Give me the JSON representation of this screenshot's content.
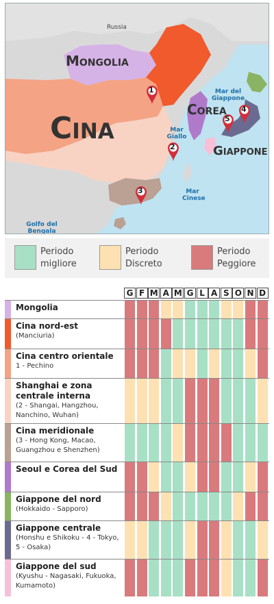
{
  "map": {
    "country_labels": {
      "russia": "Russia",
      "mongolia": "Mongolia",
      "cina": "Cina",
      "corea": "Corea",
      "giappone": "Giappone"
    },
    "sea_labels": {
      "mar_giappone": "Mar del Giappone",
      "mar_giallo": "Mar Giallo",
      "mar_cinese": "Mar Cinese",
      "golfo_bengala": "Golfo del Bengala"
    },
    "pins": [
      "1",
      "2",
      "3",
      "4",
      "5"
    ],
    "colors": {
      "sea": "#bfe3f1",
      "land_other": "#d9d9d9",
      "russia": "#e2e2e2",
      "mongolia": "#d6b3e6",
      "china_northeast": "#f05a2c",
      "china_central_east": "#f4a384",
      "china_interior": "#f8d3c4",
      "china_south": "#bba094",
      "korea": "#b07acb",
      "japan_north": "#8ab463",
      "japan_central": "#6b6b91",
      "japan_south": "#f7c0d8",
      "pin": "#d12f3c"
    }
  },
  "legend": {
    "items": [
      {
        "label_line1": "Periodo",
        "label_line2": "migliore",
        "color": "#a8e0c5"
      },
      {
        "label_line1": "Periodo",
        "label_line2": "Discreto",
        "color": "#fde1b2"
      },
      {
        "label_line1": "Periodo",
        "label_line2": "Peggiore",
        "color": "#d97a7d"
      }
    ]
  },
  "table": {
    "months": [
      "G",
      "F",
      "M",
      "A",
      "M",
      "G",
      "L",
      "A",
      "S",
      "O",
      "N",
      "D"
    ],
    "rows": [
      {
        "title": "Mongolia",
        "sub": "",
        "color": "#d6b3e6",
        "ratings": [
          "P",
          "P",
          "P",
          "D",
          "D",
          "B",
          "B",
          "B",
          "D",
          "D",
          "P",
          "P"
        ]
      },
      {
        "title": "Cina nord-est",
        "sub": "(Manciuria)",
        "color": "#f05a2c",
        "ratings": [
          "P",
          "P",
          "P",
          "P",
          "B",
          "B",
          "B",
          "B",
          "B",
          "B",
          "P",
          "P"
        ]
      },
      {
        "title": "Cina centro orientale",
        "sub": "1 - Pechino",
        "color": "#f4a384",
        "ratings": [
          "P",
          "P",
          "P",
          "B",
          "D",
          "D",
          "B",
          "D",
          "B",
          "B",
          "D",
          "P"
        ]
      },
      {
        "title": "Shanghai e zona centrale interna",
        "sub": "(2 - Shangai, Hangzhou, Nanchino, Wuhan)",
        "color": "#f8d3c4",
        "ratings": [
          "D",
          "D",
          "D",
          "B",
          "B",
          "P",
          "P",
          "P",
          "B",
          "B",
          "B",
          "D"
        ]
      },
      {
        "title": "Cina meridionale",
        "sub": "(3 - Hong Kong, Macao, Guangzhou e Shenzhen)",
        "color": "#bba094",
        "ratings": [
          "B",
          "B",
          "B",
          "B",
          "D",
          "P",
          "P",
          "P",
          "P",
          "B",
          "B",
          "B"
        ]
      },
      {
        "title": "Seoul e Corea del Sud",
        "sub": "",
        "color": "#b07acb",
        "ratings": [
          "P",
          "P",
          "D",
          "B",
          "B",
          "D",
          "P",
          "P",
          "B",
          "B",
          "D",
          "P"
        ]
      },
      {
        "title": "Giappone del nord",
        "sub": "(Hokkaido - Sapporo)",
        "color": "#8ab463",
        "ratings": [
          "P",
          "P",
          "P",
          "D",
          "B",
          "B",
          "B",
          "B",
          "B",
          "D",
          "P",
          "P"
        ]
      },
      {
        "title": "Giappone centrale",
        "sub": "(Honshu e Shikoku - 4 - Tokyo, 5 - Osaka)",
        "color": "#6b6b91",
        "ratings": [
          "D",
          "D",
          "B",
          "B",
          "B",
          "D",
          "P",
          "P",
          "D",
          "B",
          "B",
          "D"
        ]
      },
      {
        "title": "Giappone del sud",
        "sub": "(Kyushu - Nagasaki, Fukuoka, Kumamoto)",
        "color": "#f7c0d8",
        "ratings": [
          "P",
          "P",
          "B",
          "B",
          "B",
          "P",
          "P",
          "P",
          "D",
          "B",
          "B",
          "P"
        ]
      }
    ],
    "rating_colors": {
      "B": "#a8e0c5",
      "D": "#fde1b2",
      "P": "#d97a7d"
    }
  }
}
